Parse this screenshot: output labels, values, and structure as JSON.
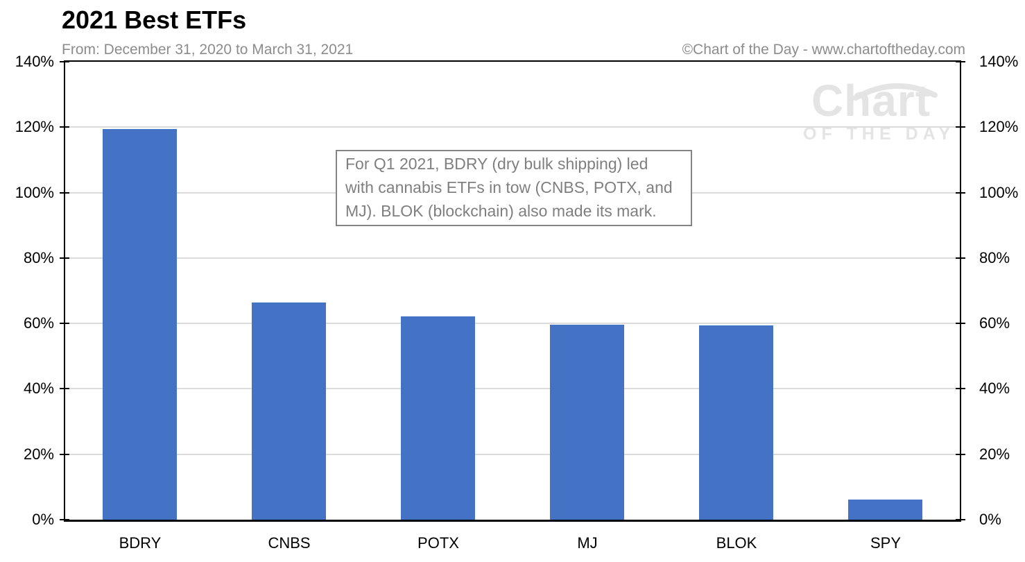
{
  "header": {
    "title": "2021 Best ETFs",
    "subtitle": "From: December 31, 2020 to March 31, 2021",
    "copyright": "©Chart of the Day - www.chartoftheday.com"
  },
  "watermark": {
    "line1": "Chart",
    "line2": "OF THE DAY"
  },
  "annotation": {
    "text": "For Q1 2021, BDRY (dry bulk shipping) led\nwith cannabis ETFs in tow (CNBS, POTX, and\nMJ). BLOK (blockchain) also made its mark."
  },
  "colors": {
    "bar": "#4472c4",
    "gridline": "#dbdbdb",
    "axis": "#000000",
    "muted_text": "#8c8c8c",
    "annotation_text": "#7f7f7f",
    "watermark": "#e4e4e4"
  },
  "chart_data": {
    "type": "bar",
    "title": "2021 Best ETFs",
    "subtitle": "From: December 31, 2020 to March 31, 2021",
    "categories": [
      "BDRY",
      "CNBS",
      "POTX",
      "MJ",
      "BLOK",
      "SPY"
    ],
    "values": [
      119.5,
      66.4,
      62.1,
      59.7,
      59.4,
      6.2
    ],
    "unit": "%",
    "xlabel": "",
    "ylabel": "",
    "ylim": [
      0,
      140
    ],
    "ytick_step": 20,
    "ytick_labels": [
      "0%",
      "20%",
      "40%",
      "60%",
      "80%",
      "100%",
      "120%",
      "140%"
    ],
    "grid": true,
    "dual_y_axis": true,
    "legend": false,
    "annotation": "For Q1 2021, BDRY (dry bulk shipping) led with cannabis ETFs in tow (CNBS, POTX, and MJ). BLOK (blockchain) also made its mark."
  }
}
